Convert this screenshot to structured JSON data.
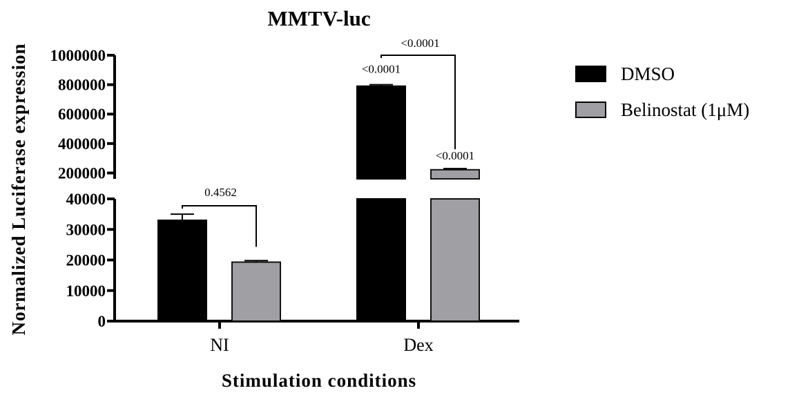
{
  "chart_data": {
    "type": "bar",
    "title": "MMTV-luc",
    "xlabel": "Stimulation conditions",
    "ylabel": "Normalized Luciferase expression",
    "categories": [
      "NI",
      "Dex"
    ],
    "series": [
      {
        "name": "DMSO",
        "color": "#000000",
        "values": [
          33000,
          790000
        ],
        "errors": [
          2000,
          10000
        ]
      },
      {
        "name": "Belinostat (1μM)",
        "color": "#a0a0a4",
        "values": [
          19300,
          222000
        ],
        "errors": [
          500,
          8000
        ]
      }
    ],
    "y_axis": {
      "broken": true,
      "lower_segment": {
        "range": [
          0,
          40000
        ],
        "ticks": [
          "0",
          "10000",
          "20000",
          "30000",
          "40000"
        ]
      },
      "upper_segment": {
        "range": [
          160000,
          1000000
        ],
        "ticks": [
          "200000",
          "400000",
          "600000",
          "800000",
          "1000000"
        ]
      }
    },
    "annotations": [
      {
        "text": "0.4562",
        "type": "bracket",
        "between": [
          "NI/DMSO",
          "NI/Belinostat (1μM)"
        ]
      },
      {
        "text": "<0.0001",
        "type": "bracket",
        "between": [
          "Dex/DMSO",
          "Dex/Belinostat (1μM)"
        ]
      },
      {
        "text": "<0.0001",
        "type": "bar-label",
        "target": "Dex/DMSO"
      },
      {
        "text": "<0.0001",
        "type": "bar-label",
        "target": "Dex/Belinostat (1μM)"
      }
    ],
    "legend": {
      "placement": "right"
    },
    "grid": false
  }
}
